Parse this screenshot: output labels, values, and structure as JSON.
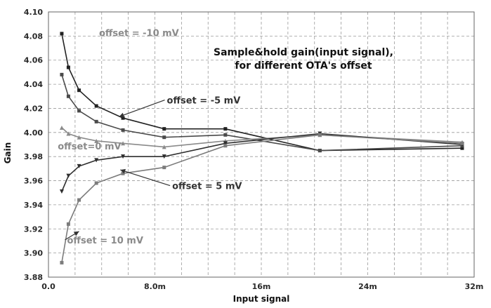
{
  "chart_data": {
    "type": "line",
    "title_lines": [
      "Sample&hold gain(input signal),",
      "for different OTA's offset"
    ],
    "xlabel": "Input signal",
    "ylabel": "Gain",
    "xlim": [
      0,
      0.032
    ],
    "ylim": [
      3.88,
      4.1
    ],
    "x_tick_values": [
      0,
      0.008,
      0.016,
      0.024,
      0.032
    ],
    "x_tick_labels": [
      "0.0",
      "8.0m",
      "16m",
      "24m",
      "32m"
    ],
    "y_tick_values": [
      3.88,
      3.9,
      3.92,
      3.94,
      3.96,
      3.98,
      4.0,
      4.02,
      4.04,
      4.06,
      4.08,
      4.1
    ],
    "y_tick_labels": [
      "3.88",
      "3.90",
      "3.92",
      "3.94",
      "3.96",
      "3.98",
      "4.00",
      "4.02",
      "4.04",
      "4.06",
      "4.08",
      "4.10"
    ],
    "grid": true,
    "series": [
      {
        "name": "offset = -10 mV",
        "color": "#222222",
        "x": [
          0.001,
          0.0015,
          0.0023,
          0.0036,
          0.0056,
          0.0087,
          0.0133,
          0.0204,
          0.0311
        ],
        "y": [
          4.082,
          4.054,
          4.035,
          4.022,
          4.012,
          4.003,
          4.003,
          3.985,
          3.987
        ]
      },
      {
        "name": "offset = -5 mV",
        "color": "#4a4a4a",
        "x": [
          0.001,
          0.0015,
          0.0023,
          0.0036,
          0.0056,
          0.0087,
          0.0133,
          0.0204,
          0.0311
        ],
        "y": [
          4.048,
          4.03,
          4.018,
          4.009,
          4.002,
          3.996,
          3.998,
          3.985,
          3.989
        ]
      },
      {
        "name": "offset=0 mV",
        "color": "#8a8a8a",
        "x": [
          0.001,
          0.0015,
          0.0023,
          0.0036,
          0.0056,
          0.0087,
          0.0133,
          0.0204,
          0.0311
        ],
        "y": [
          4.004,
          3.999,
          3.996,
          3.993,
          3.991,
          3.988,
          3.993,
          3.998,
          3.992
        ]
      },
      {
        "name": "offset = 5 mV",
        "color": "#2f2f2f",
        "x": [
          0.001,
          0.0015,
          0.0023,
          0.0036,
          0.0056,
          0.0087,
          0.0133,
          0.0204,
          0.0311
        ],
        "y": [
          3.951,
          3.964,
          3.972,
          3.977,
          3.98,
          3.98,
          3.991,
          3.999,
          3.99
        ]
      },
      {
        "name": "offset = 10 mV",
        "color": "#7c7c7c",
        "x": [
          0.001,
          0.0015,
          0.0023,
          0.0036,
          0.0056,
          0.0087,
          0.0133,
          0.0204,
          0.0311
        ],
        "y": [
          3.892,
          3.924,
          3.944,
          3.958,
          3.966,
          3.971,
          3.989,
          3.998,
          3.991
        ]
      }
    ],
    "annotations": [
      {
        "text": "offset = -10 mV",
        "color": "#8a8a8a",
        "x": 0.0038,
        "y": 4.08
      },
      {
        "text": "offset = -5 mV",
        "color": "#333333",
        "x": 0.0089,
        "y": 4.024,
        "arrow_to": [
          0.0053,
          4.013
        ]
      },
      {
        "text": "offset=0 mV",
        "color": "#8a8a8a",
        "x": 0.0007,
        "y": 3.986
      },
      {
        "text": "offset = 5 mV",
        "color": "#333333",
        "x": 0.0093,
        "y": 3.953,
        "arrow_to": [
          0.0054,
          3.969
        ]
      },
      {
        "text": "offset = 10 mV",
        "color": "#8a8a8a",
        "x": 0.0014,
        "y": 3.908,
        "arrow_to": [
          0.0023,
          3.918
        ]
      }
    ]
  }
}
